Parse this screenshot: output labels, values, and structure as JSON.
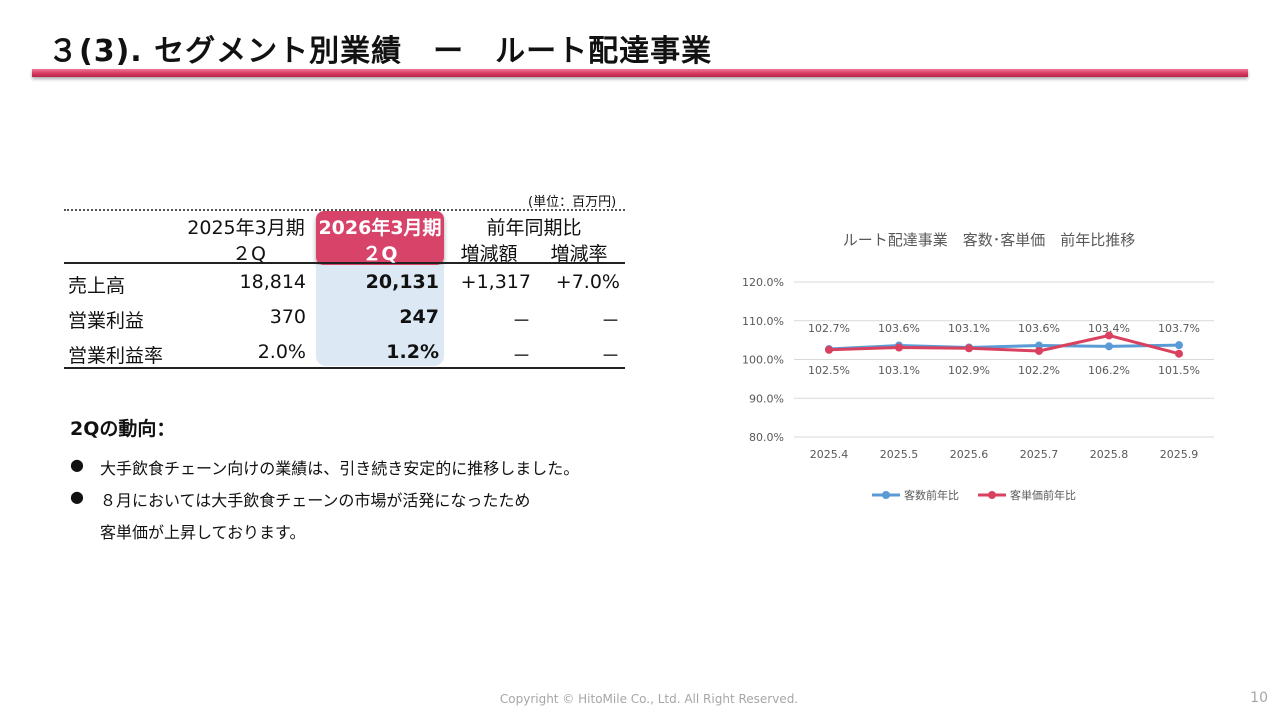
{
  "title": "３(3).  セグメント別業績　ー　ルート配達事業",
  "table": {
    "unit": "(単位：百万円)",
    "header": {
      "prev_year": "2025年3月期",
      "prev_q": "２Q",
      "curr_year": "2026年3月期",
      "curr_q": "２Q",
      "yoy": "前年同期比",
      "diff": "増減額",
      "rate": "増減率"
    },
    "rows": [
      {
        "label": "売上高",
        "prev": "18,814",
        "curr": "20,131",
        "diff": "+1,317",
        "rate": "+7.0%"
      },
      {
        "label": "営業利益",
        "prev": "370",
        "curr": "247",
        "diff": "－",
        "rate": "－"
      },
      {
        "label": "営業利益率",
        "prev": "2.0%",
        "curr": "1.2%",
        "diff": "－",
        "rate": "－"
      }
    ]
  },
  "trend": {
    "heading": "2Qの動向：",
    "bullets": [
      "大手飲食チェーン向けの業績は、引き続き安定的に推移しました。",
      "８月においては大手飲食チェーンの市場が活発になったため"
    ],
    "continuation": "客単価が上昇しております。",
    "bullet_symbol": "●"
  },
  "chart_data": {
    "type": "line",
    "title": "ルート配達事業　客数･客単価　前年比推移",
    "categories": [
      "2025.4",
      "2025.5",
      "2025.6",
      "2025.7",
      "2025.8",
      "2025.9"
    ],
    "ylim": [
      80.0,
      120.0
    ],
    "yticks": [
      "80.0%",
      "90.0%",
      "100.0%",
      "110.0%",
      "120.0%"
    ],
    "grid": true,
    "legend_position": "bottom",
    "series": [
      {
        "name": "客数前年比",
        "color": "#5b9bd5",
        "values": [
          102.7,
          103.6,
          103.1,
          103.6,
          103.4,
          103.7
        ],
        "labels": [
          "102.7%",
          "103.6%",
          "103.1%",
          "103.6%",
          "103.4%",
          "103.7%"
        ]
      },
      {
        "name": "客単価前年比",
        "color": "#d9415f",
        "values": [
          102.5,
          103.1,
          102.9,
          102.2,
          106.2,
          101.5
        ],
        "labels": [
          "102.5%",
          "103.1%",
          "102.9%",
          "102.2%",
          "106.2%",
          "101.5%"
        ]
      }
    ]
  },
  "footer": "Copyright © HitoMile Co., Ltd. All Right Reserved.",
  "page_number": "10",
  "colors": {
    "accent": "#d8436a",
    "highlight_column": "#dce8f4"
  }
}
